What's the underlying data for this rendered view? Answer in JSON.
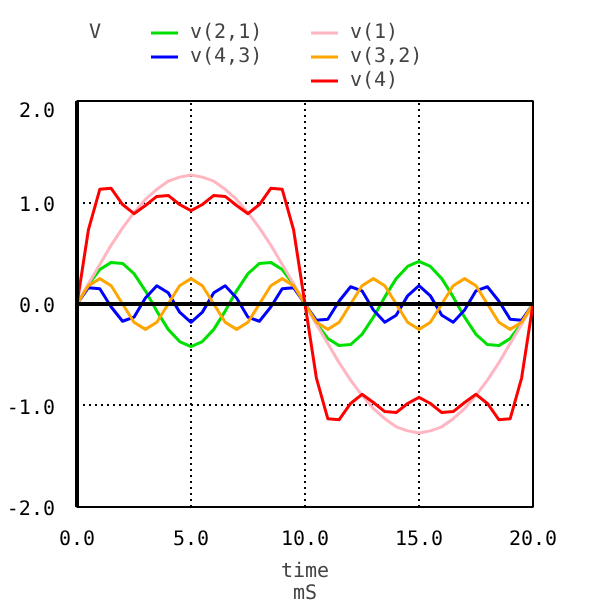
{
  "chart_data": {
    "type": "line",
    "xlabel": "time",
    "ylabel": "V",
    "annotations": [
      "mS"
    ],
    "x": [
      0,
      0.5,
      1,
      1.5,
      2,
      2.5,
      3,
      3.5,
      4,
      4.5,
      5,
      5.5,
      6,
      6.5,
      7,
      7.5,
      8,
      8.5,
      9,
      9.5,
      10,
      10.5,
      11,
      11.5,
      12,
      12.5,
      13,
      13.5,
      14,
      14.5,
      15,
      15.5,
      16,
      16.5,
      17,
      17.5,
      18,
      18.5,
      19,
      19.5,
      20
    ],
    "series": [
      {
        "name": "v(2,1)",
        "color": "#00e000",
        "values": [
          0,
          0.19,
          0.34,
          0.41,
          0.4,
          0.3,
          0.13,
          -0.07,
          -0.25,
          -0.37,
          -0.42,
          -0.37,
          -0.25,
          -0.07,
          0.13,
          0.3,
          0.4,
          0.41,
          0.34,
          0.19,
          0,
          -0.19,
          -0.34,
          -0.41,
          -0.4,
          -0.3,
          -0.13,
          0.07,
          0.25,
          0.37,
          0.42,
          0.37,
          0.25,
          0.07,
          -0.13,
          -0.3,
          -0.4,
          -0.41,
          -0.34,
          -0.19,
          0
        ]
      },
      {
        "name": "v(4,3)",
        "color": "#0000ff",
        "values": [
          0,
          0.16,
          0.15,
          -0.03,
          -0.17,
          -0.13,
          0.06,
          0.18,
          0.11,
          -0.08,
          -0.18,
          -0.08,
          0.11,
          0.18,
          0.06,
          -0.13,
          -0.17,
          -0.03,
          0.15,
          0.16,
          0,
          -0.16,
          -0.15,
          0.03,
          0.17,
          0.13,
          -0.06,
          -0.18,
          -0.11,
          0.08,
          0.18,
          0.08,
          -0.11,
          -0.18,
          -0.06,
          0.13,
          0.17,
          0.03,
          -0.15,
          -0.16,
          0
        ]
      },
      {
        "name": "v(1)",
        "color": "#ffb6c1",
        "values": [
          0,
          0.2,
          0.39,
          0.58,
          0.75,
          0.9,
          1.03,
          1.13,
          1.21,
          1.25,
          1.27,
          1.25,
          1.21,
          1.13,
          1.03,
          0.9,
          0.75,
          0.58,
          0.39,
          0.2,
          0,
          -0.2,
          -0.39,
          -0.58,
          -0.75,
          -0.9,
          -1.03,
          -1.13,
          -1.21,
          -1.25,
          -1.27,
          -1.25,
          -1.21,
          -1.13,
          -1.03,
          -0.9,
          -0.75,
          -0.58,
          -0.39,
          -0.2,
          0
        ]
      },
      {
        "name": "v(3,2)",
        "color": "#ffa500",
        "values": [
          0,
          0.18,
          0.25,
          0.18,
          0,
          -0.18,
          -0.25,
          -0.18,
          0,
          0.18,
          0.25,
          0.18,
          0,
          -0.18,
          -0.25,
          -0.18,
          0,
          0.18,
          0.25,
          0.18,
          0,
          -0.18,
          -0.25,
          -0.18,
          0,
          0.18,
          0.25,
          0.18,
          0,
          -0.18,
          -0.25,
          -0.18,
          0,
          0.18,
          0.25,
          0.18,
          0,
          -0.18,
          -0.25,
          -0.18,
          0
        ]
      },
      {
        "name": "v(4)",
        "color": "#ff0000",
        "values": [
          0,
          0.73,
          1.13,
          1.14,
          0.98,
          0.89,
          0.97,
          1.06,
          1.07,
          0.98,
          0.92,
          0.98,
          1.07,
          1.06,
          0.97,
          0.89,
          0.98,
          1.14,
          1.13,
          0.73,
          0,
          -0.73,
          -1.13,
          -1.14,
          -0.98,
          -0.89,
          -0.97,
          -1.06,
          -1.07,
          -0.98,
          -0.92,
          -0.98,
          -1.07,
          -1.06,
          -0.97,
          -0.89,
          -0.98,
          -1.14,
          -1.13,
          -0.73,
          0
        ]
      }
    ],
    "xlim": [
      0,
      20
    ],
    "ylim": [
      -2,
      2
    ],
    "xticks": [
      {
        "value": 0,
        "label": "0.0"
      },
      {
        "value": 5,
        "label": "5.0"
      },
      {
        "value": 10,
        "label": "10.0"
      },
      {
        "value": 15,
        "label": "15.0"
      },
      {
        "value": 20,
        "label": "20.0"
      }
    ],
    "yticks": [
      {
        "value": -2,
        "label": "-2.0"
      },
      {
        "value": -1,
        "label": "-1.0"
      },
      {
        "value": 0,
        "label": "0.0"
      },
      {
        "value": 1,
        "label": "1.0"
      },
      {
        "value": 2,
        "label": "2.0"
      }
    ],
    "ref_lines": [
      {
        "axis": "y",
        "value": 0,
        "color": "#000000",
        "line_style": "solid"
      }
    ],
    "grid": true,
    "legend": "top",
    "line_style": "solid",
    "marker": "none"
  }
}
